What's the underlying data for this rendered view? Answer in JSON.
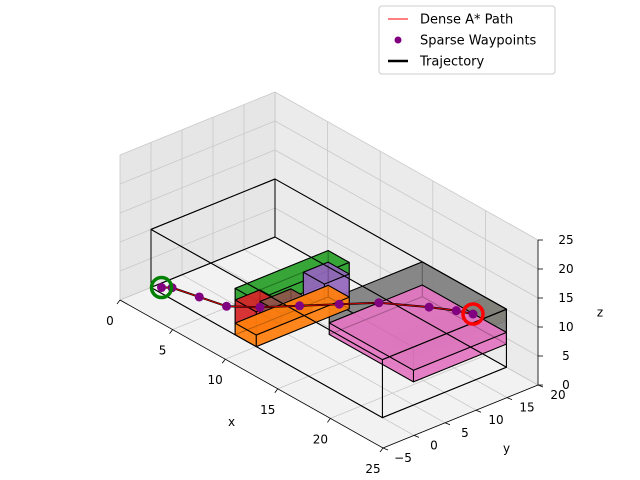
{
  "chart_data": {
    "type": "scatter",
    "projection": "3d",
    "xlabel": "x",
    "ylabel": "y",
    "zlabel": "z",
    "xlim": [
      0,
      25
    ],
    "ylim": [
      -5,
      20
    ],
    "zlim": [
      0,
      25
    ],
    "x_ticks": [
      "0",
      "5",
      "10",
      "15",
      "20",
      "25"
    ],
    "y_ticks": [
      "−5",
      "0",
      "5",
      "10",
      "15",
      "20"
    ],
    "z_ticks": [
      "0",
      "5",
      "10",
      "15",
      "20",
      "25"
    ],
    "grid": true,
    "legend_position": "top-right",
    "legend": [
      {
        "label": "Dense A* Path",
        "color": "#ff0000",
        "marker": "line-thin"
      },
      {
        "label": "Sparse Waypoints",
        "color": "#800080",
        "marker": "dot"
      },
      {
        "label": "Trajectory",
        "color": "#000000",
        "marker": "line-thick"
      }
    ],
    "series": [
      {
        "name": "Sparse Waypoints",
        "color": "#800080",
        "points": [
          {
            "x": 1,
            "y": 0,
            "z": 1
          },
          {
            "x": 2,
            "y": 0,
            "z": 2
          },
          {
            "x": 4,
            "y": 1,
            "z": 2
          },
          {
            "x": 6,
            "y": 2,
            "z": 2
          },
          {
            "x": 8,
            "y": 4,
            "z": 3
          },
          {
            "x": 10,
            "y": 7,
            "z": 4
          },
          {
            "x": 12,
            "y": 10,
            "z": 5
          },
          {
            "x": 14,
            "y": 13,
            "z": 6
          },
          {
            "x": 17,
            "y": 16,
            "z": 7
          },
          {
            "x": 19,
            "y": 17,
            "z": 8
          },
          {
            "x": 20,
            "y": 18,
            "z": 8
          }
        ]
      },
      {
        "name": "Trajectory",
        "color": "#000000",
        "points": [
          {
            "x": 1,
            "y": 0,
            "z": 1
          },
          {
            "x": 2,
            "y": 0,
            "z": 2
          },
          {
            "x": 4,
            "y": 1,
            "z": 2
          },
          {
            "x": 6,
            "y": 2,
            "z": 2
          },
          {
            "x": 8,
            "y": 4,
            "z": 3
          },
          {
            "x": 10,
            "y": 7,
            "z": 4
          },
          {
            "x": 12,
            "y": 10,
            "z": 5
          },
          {
            "x": 14,
            "y": 13,
            "z": 6
          },
          {
            "x": 17,
            "y": 16,
            "z": 7
          },
          {
            "x": 19,
            "y": 17,
            "z": 8
          },
          {
            "x": 20,
            "y": 18,
            "z": 8
          }
        ]
      }
    ],
    "markers": [
      {
        "kind": "start",
        "color": "#008000",
        "x": 1,
        "y": 0,
        "z": 1
      },
      {
        "kind": "goal",
        "color": "#ff0000",
        "x": 20,
        "y": 18,
        "z": 8
      }
    ],
    "obstacles": [
      {
        "color": "#808000",
        "x": [
          20,
          22
        ],
        "y": [
          5,
          20
        ],
        "z": [
          8,
          10
        ]
      },
      {
        "color": "#808080",
        "x": [
          14,
          22
        ],
        "y": [
          5,
          20
        ],
        "z": [
          6,
          10
        ]
      },
      {
        "color": "#e377c2",
        "x": [
          14,
          22
        ],
        "y": [
          5,
          20
        ],
        "z": [
          4,
          6
        ]
      },
      {
        "color": "#2ca02c",
        "x": [
          8,
          10
        ],
        "y": [
          0,
          15
        ],
        "z": [
          6,
          8
        ]
      },
      {
        "color": "#d62728",
        "x": [
          8,
          10
        ],
        "y": [
          0,
          4
        ],
        "z": [
          2,
          6
        ]
      },
      {
        "color": "#9467bd",
        "x": [
          8,
          10
        ],
        "y": [
          11,
          15
        ],
        "z": [
          2,
          6
        ]
      },
      {
        "color": "#8c564b",
        "x": [
          8,
          10
        ],
        "y": [
          4,
          9
        ],
        "z": [
          2,
          4
        ]
      },
      {
        "color": "#ff7f0e",
        "x": [
          8,
          10
        ],
        "y": [
          0,
          15
        ],
        "z": [
          0,
          2
        ]
      }
    ],
    "bounds": {
      "x": [
        0,
        22
      ],
      "y": [
        0,
        20
      ],
      "z": [
        0,
        10
      ]
    }
  }
}
